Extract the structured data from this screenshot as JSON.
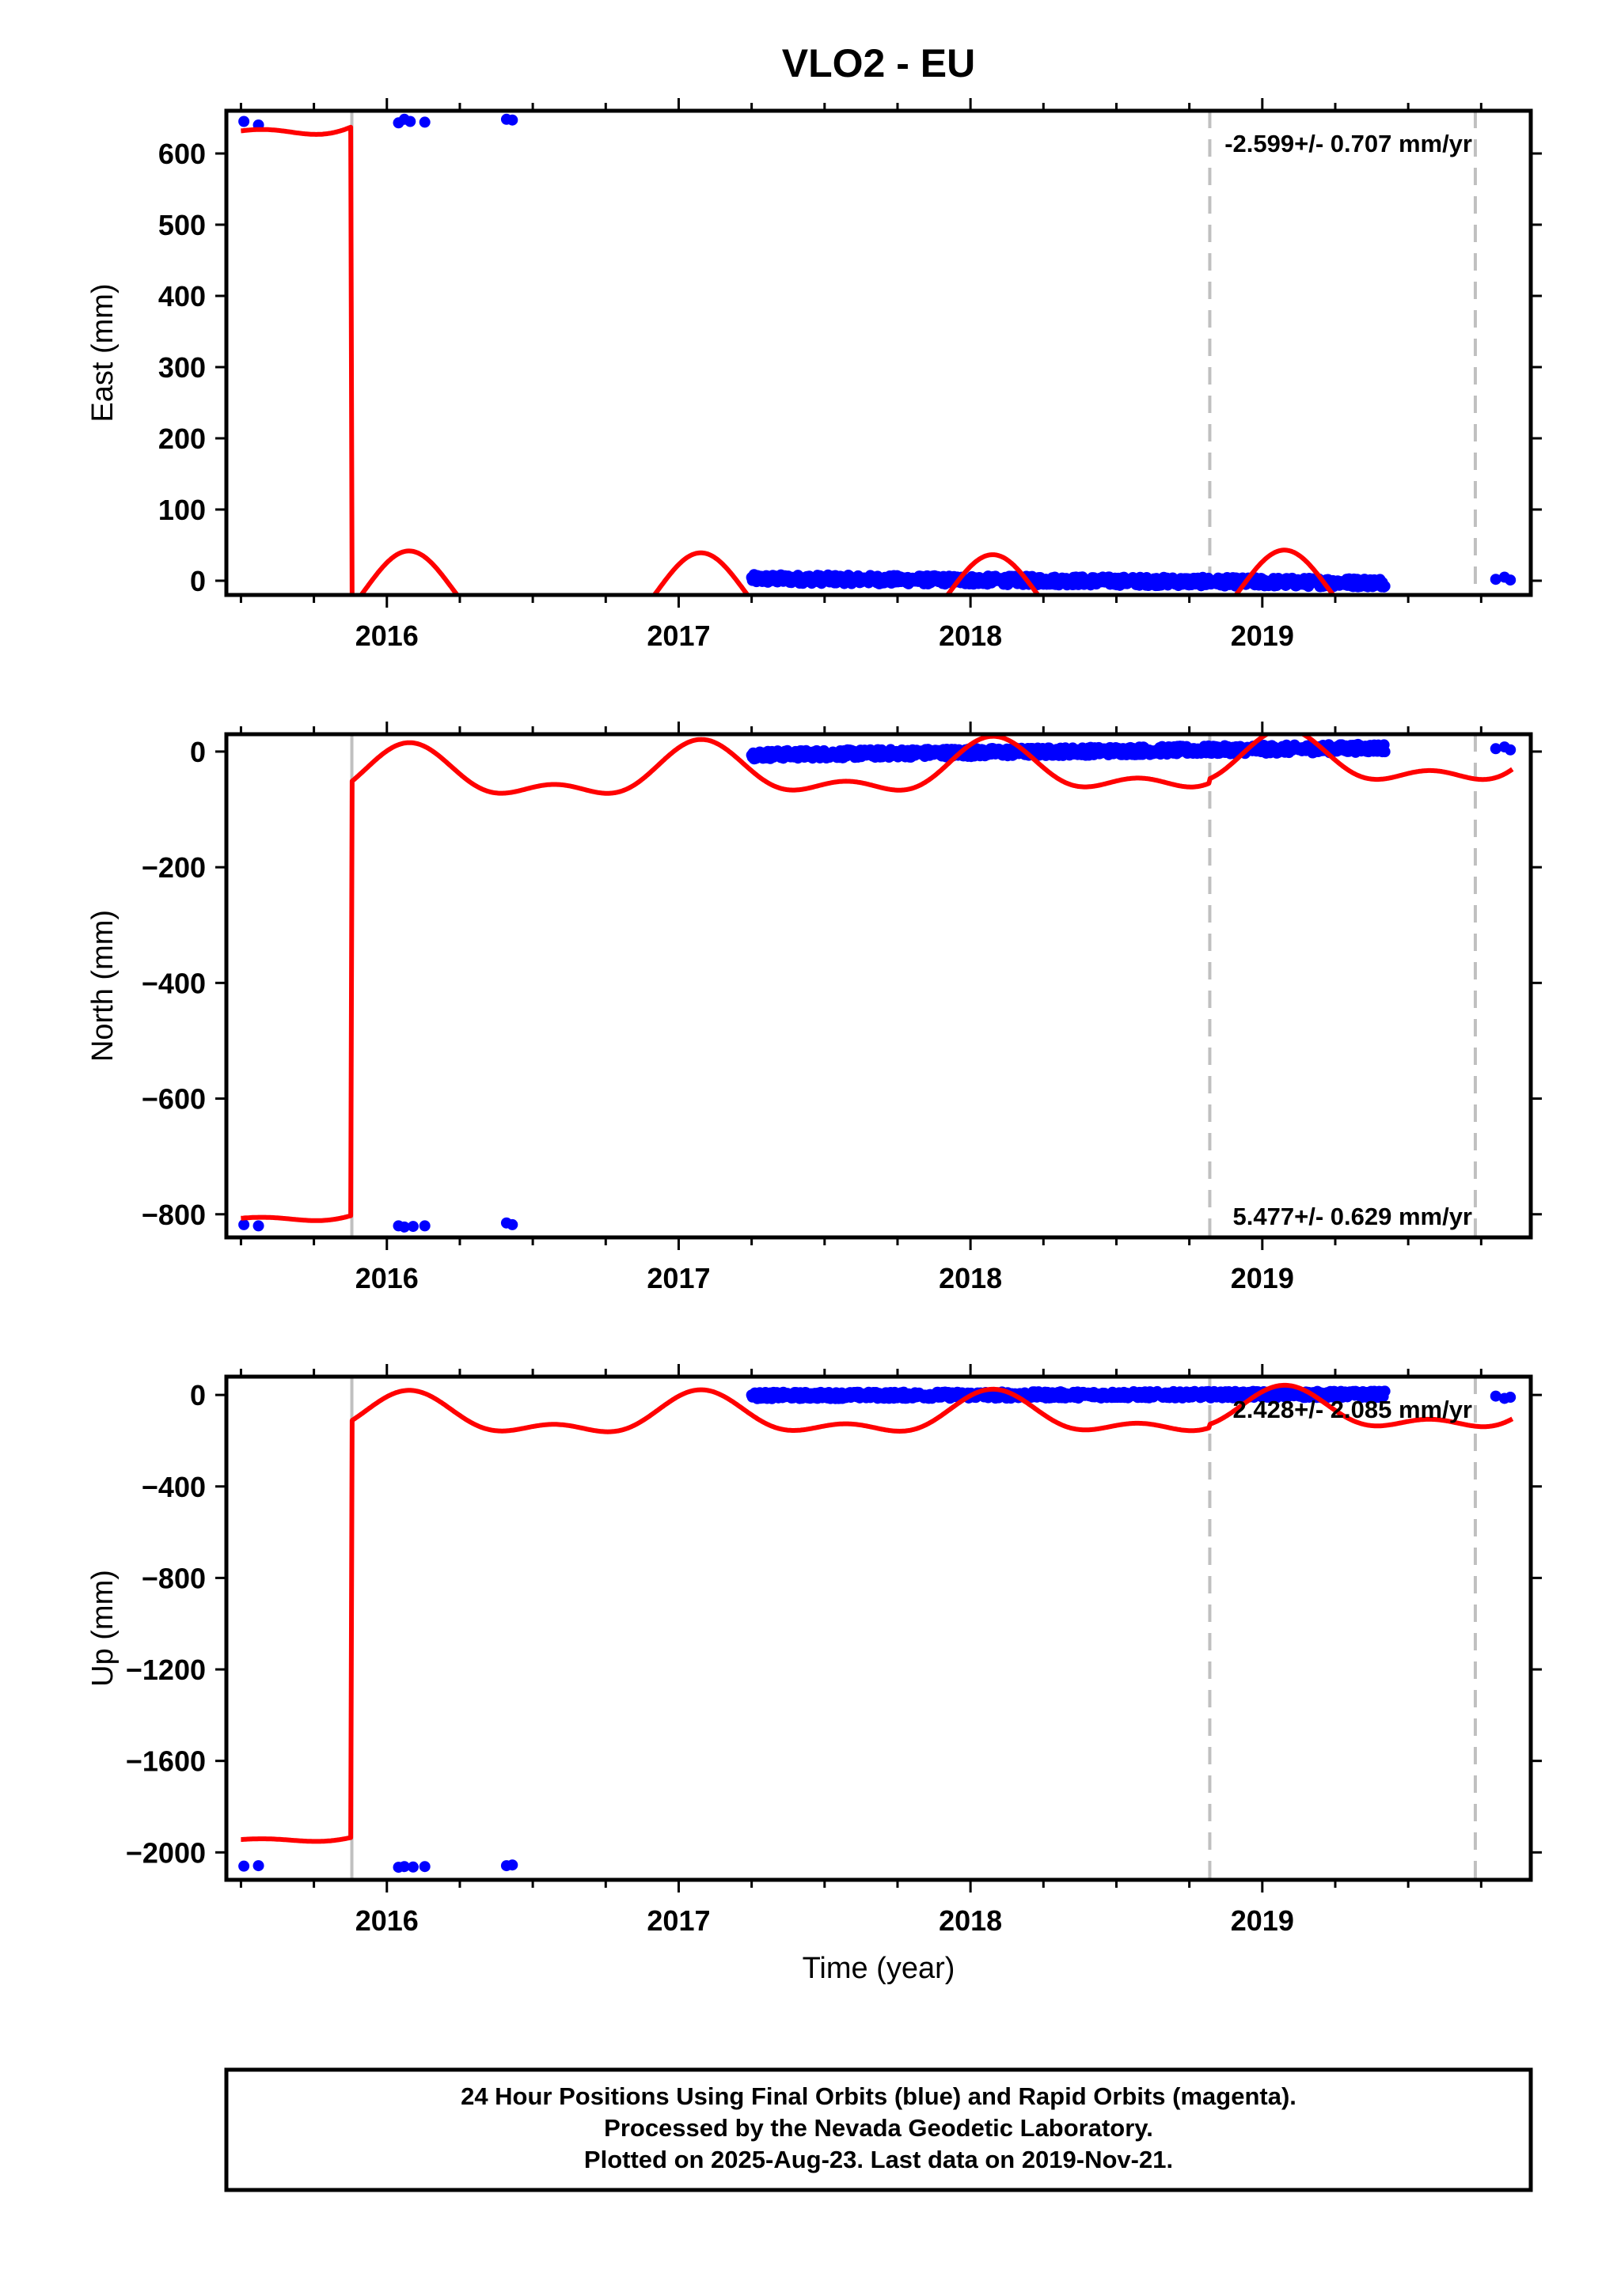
{
  "chart_data": {
    "type": "scatter",
    "title": "VLO2 - EU",
    "xlabel": "Time (year)",
    "x_ticks": [
      "2016",
      "2017",
      "2018",
      "2019"
    ],
    "xlim": [
      2015.45,
      2019.92
    ],
    "step_epochs": [
      2015.88,
      2018.82,
      2019.73
    ],
    "colors": {
      "final": "#0000ff",
      "model": "#ff0000",
      "steps": "#c0c0c0",
      "frame": "#000000"
    },
    "panels": [
      {
        "ylabel": "East (mm)",
        "ylim": [
          -20,
          660
        ],
        "y_ticks": [
          600,
          500,
          400,
          300,
          200,
          100,
          0
        ],
        "y_tick_labels": [
          "600",
          "500",
          "400",
          "300",
          "200",
          "100",
          "0"
        ],
        "rate_text": "-2.599+/- 0.707 mm/yr",
        "offset_pre": 640,
        "offset_post": 0,
        "seasonal": 60,
        "trend": -2.6,
        "early_points": [
          [
            2015.51,
            645
          ],
          [
            2015.56,
            640
          ],
          [
            2016.04,
            643
          ],
          [
            2016.06,
            648
          ],
          [
            2016.08,
            645
          ],
          [
            2016.13,
            644
          ],
          [
            2016.41,
            648
          ],
          [
            2016.43,
            647
          ]
        ],
        "cluster_start": 2017.25,
        "cluster_end": 2019.42,
        "cluster_noise": 6,
        "late_points": [
          [
            2019.8,
            2
          ],
          [
            2019.83,
            5
          ],
          [
            2019.85,
            1
          ]
        ]
      },
      {
        "ylabel": "North (mm)",
        "ylim": [
          -840,
          30
        ],
        "y_ticks": [
          0,
          -200,
          -400,
          -600,
          -800
        ],
        "y_tick_labels": [
          "0",
          "−200",
          "−400",
          "−600",
          "−800"
        ],
        "rate_text": "5.477+/- 0.629 mm/yr",
        "offset_pre": -800,
        "offset_post": -20,
        "seasonal": 50,
        "trend": 5.5,
        "early_points": [
          [
            2015.51,
            -818
          ],
          [
            2015.56,
            -820
          ],
          [
            2016.04,
            -820
          ],
          [
            2016.06,
            -822
          ],
          [
            2016.09,
            -821
          ],
          [
            2016.13,
            -820
          ],
          [
            2016.41,
            -815
          ],
          [
            2016.43,
            -818
          ]
        ],
        "cluster_start": 2017.25,
        "cluster_end": 2019.42,
        "cluster_noise": 7,
        "late_points": [
          [
            2019.8,
            5
          ],
          [
            2019.83,
            8
          ],
          [
            2019.85,
            3
          ]
        ]
      },
      {
        "ylabel": "Up (mm)",
        "ylim": [
          -2120,
          80
        ],
        "y_ticks": [
          0,
          -400,
          -800,
          -1200,
          -1600,
          -2000
        ],
        "y_tick_labels": [
          "0",
          "−400",
          "−800",
          "−1200",
          "−1600",
          "−2000"
        ],
        "rate_text": "2.428+/- 2.085 mm/yr",
        "offset_pre": -1930,
        "offset_post": -50,
        "seasonal": 100,
        "trend": 2.4,
        "early_points": [
          [
            2015.51,
            -2060
          ],
          [
            2015.56,
            -2058
          ],
          [
            2016.04,
            -2065
          ],
          [
            2016.06,
            -2062
          ],
          [
            2016.09,
            -2064
          ],
          [
            2016.13,
            -2062
          ],
          [
            2016.41,
            -2058
          ],
          [
            2016.43,
            -2055
          ]
        ],
        "cluster_start": 2017.25,
        "cluster_end": 2019.42,
        "cluster_noise": 14,
        "late_points": [
          [
            2019.8,
            -5
          ],
          [
            2019.83,
            -15
          ],
          [
            2019.85,
            -10
          ]
        ]
      }
    ]
  },
  "footer": {
    "line1": "24 Hour Positions Using Final Orbits (blue) and Rapid Orbits (magenta).",
    "line2": "Processed by the Nevada Geodetic Laboratory.",
    "line3": "Plotted on 2025-Aug-23. Last data on 2019-Nov-21."
  }
}
